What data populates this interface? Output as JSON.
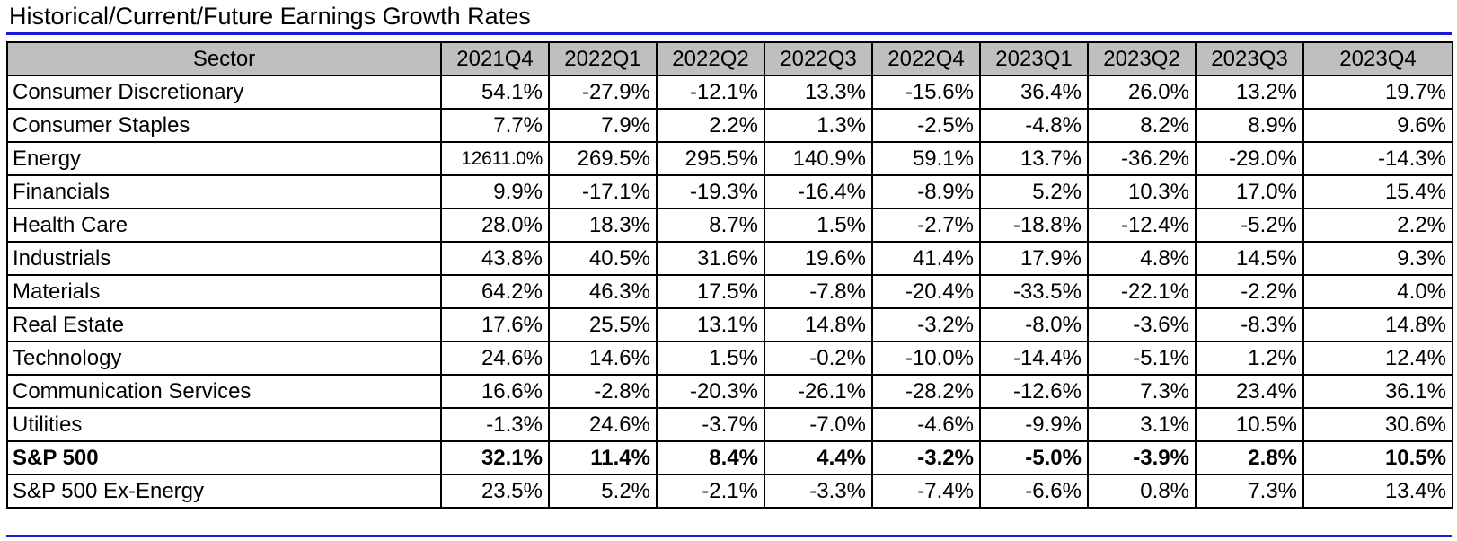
{
  "title": "Historical/Current/Future Earnings Growth Rates",
  "table": {
    "columns": [
      "Sector",
      "2021Q4",
      "2022Q1",
      "2022Q2",
      "2022Q3",
      "2022Q4",
      "2023Q1",
      "2023Q2",
      "2023Q3",
      "2023Q4"
    ],
    "rows": [
      {
        "sector": "Consumer Discretionary",
        "values": [
          "54.1%",
          "-27.9%",
          "-12.1%",
          "13.3%",
          "-15.6%",
          "36.4%",
          "26.0%",
          "13.2%",
          "19.7%"
        ]
      },
      {
        "sector": "Consumer Staples",
        "values": [
          "7.7%",
          "7.9%",
          "2.2%",
          "1.3%",
          "-2.5%",
          "-4.8%",
          "8.2%",
          "8.9%",
          "9.6%"
        ]
      },
      {
        "sector": "Energy",
        "values": [
          "12611.0%",
          "269.5%",
          "295.5%",
          "140.9%",
          "59.1%",
          "13.7%",
          "-36.2%",
          "-29.0%",
          "-14.3%"
        ]
      },
      {
        "sector": "Financials",
        "values": [
          "9.9%",
          "-17.1%",
          "-19.3%",
          "-16.4%",
          "-8.9%",
          "5.2%",
          "10.3%",
          "17.0%",
          "15.4%"
        ]
      },
      {
        "sector": "Health Care",
        "values": [
          "28.0%",
          "18.3%",
          "8.7%",
          "1.5%",
          "-2.7%",
          "-18.8%",
          "-12.4%",
          "-5.2%",
          "2.2%"
        ]
      },
      {
        "sector": "Industrials",
        "values": [
          "43.8%",
          "40.5%",
          "31.6%",
          "19.6%",
          "41.4%",
          "17.9%",
          "4.8%",
          "14.5%",
          "9.3%"
        ]
      },
      {
        "sector": "Materials",
        "values": [
          "64.2%",
          "46.3%",
          "17.5%",
          "-7.8%",
          "-20.4%",
          "-33.5%",
          "-22.1%",
          "-2.2%",
          "4.0%"
        ]
      },
      {
        "sector": "Real Estate",
        "values": [
          "17.6%",
          "25.5%",
          "13.1%",
          "14.8%",
          "-3.2%",
          "-8.0%",
          "-3.6%",
          "-8.3%",
          "14.8%"
        ]
      },
      {
        "sector": "Technology",
        "values": [
          "24.6%",
          "14.6%",
          "1.5%",
          "-0.2%",
          "-10.0%",
          "-14.4%",
          "-5.1%",
          "1.2%",
          "12.4%"
        ]
      },
      {
        "sector": "Communication Services",
        "values": [
          "16.6%",
          "-2.8%",
          "-20.3%",
          "-26.1%",
          "-28.2%",
          "-12.6%",
          "7.3%",
          "23.4%",
          "36.1%"
        ]
      },
      {
        "sector": "Utilities",
        "values": [
          "-1.3%",
          "24.6%",
          "-3.7%",
          "-7.0%",
          "-4.6%",
          "-9.9%",
          "3.1%",
          "10.5%",
          "30.6%"
        ]
      },
      {
        "sector": "S&P 500",
        "bold": true,
        "values": [
          "32.1%",
          "11.4%",
          "8.4%",
          "4.4%",
          "-3.2%",
          "-5.0%",
          "-3.9%",
          "2.8%",
          "10.5%"
        ]
      },
      {
        "sector": "S&P 500 Ex-Energy",
        "values": [
          "23.5%",
          "5.2%",
          "-2.1%",
          "-3.3%",
          "-7.4%",
          "-6.6%",
          "0.8%",
          "7.3%",
          "13.4%"
        ]
      }
    ]
  },
  "colors": {
    "rule": "#1a1ad6",
    "header_bg": "#bfbfbf",
    "border": "#000000"
  }
}
